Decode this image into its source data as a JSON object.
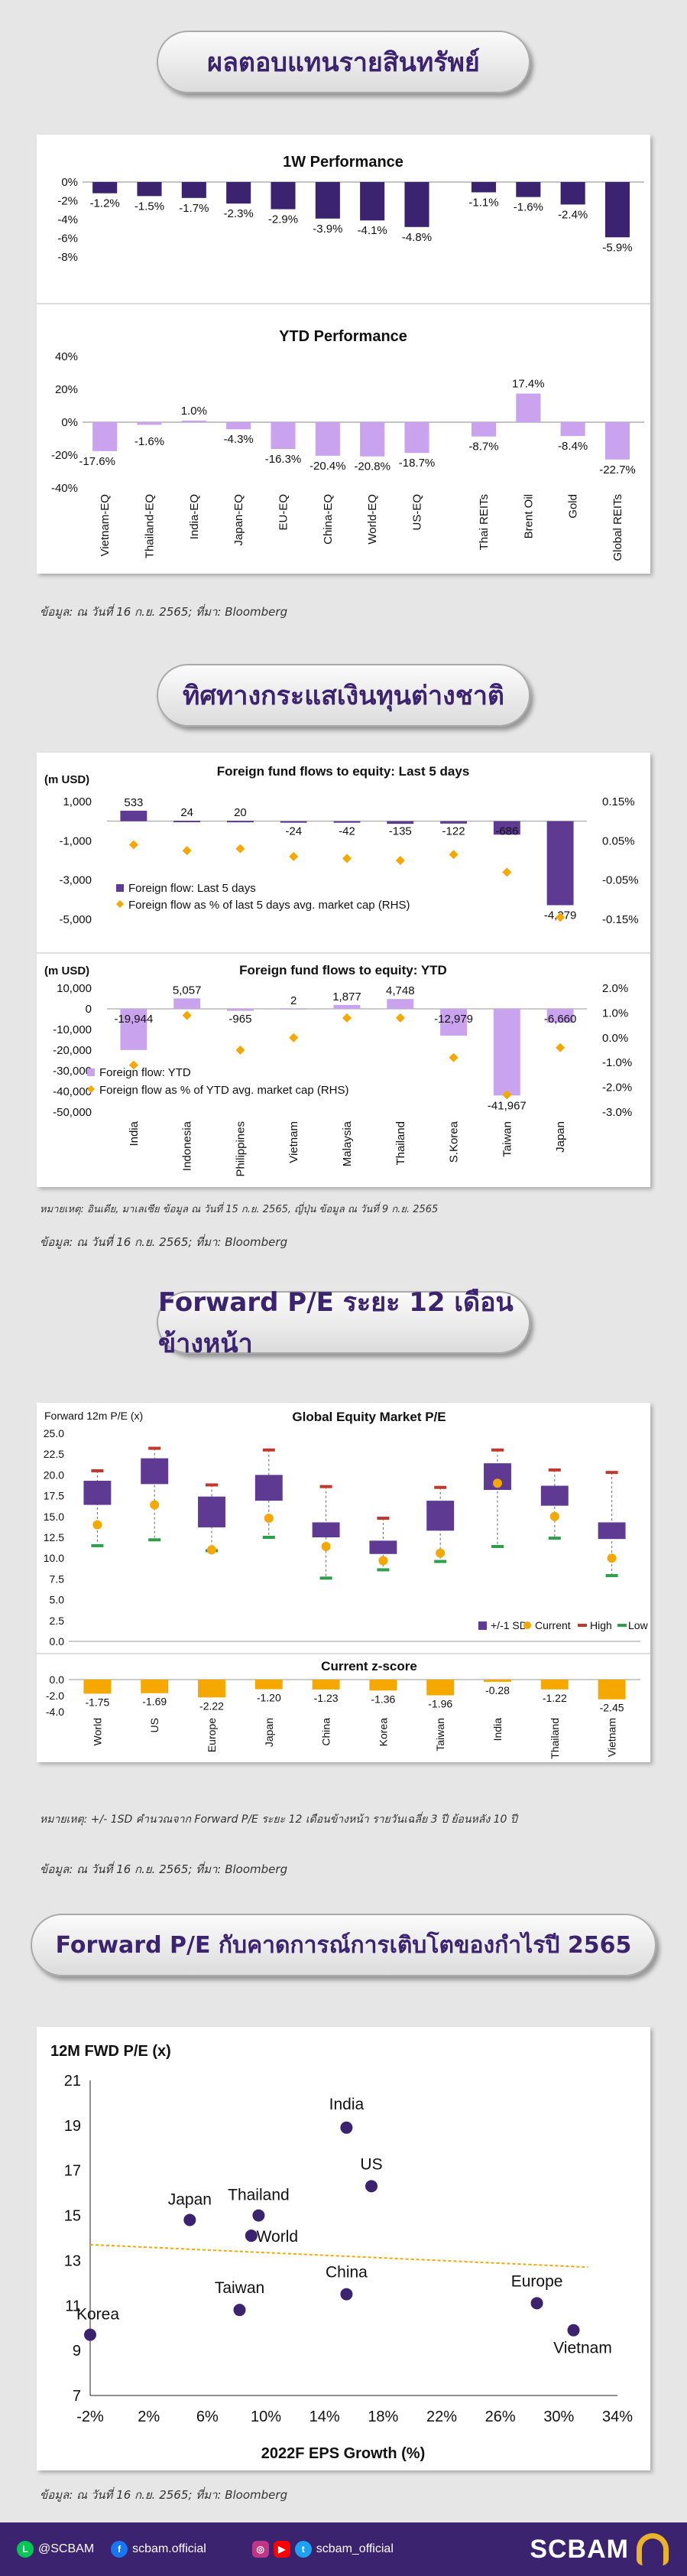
{
  "banners": {
    "b1": "ผลตอบแทนรายสินทรัพย์",
    "b2": "ทิศทางกระแสเงินทุนต่างชาติ",
    "b3": "Forward P/E ระยะ 12 เดือนข้างหน้า",
    "b4": "Forward P/E กับคาดการณ์การเติบโตของกำไรปี 2565"
  },
  "notes": {
    "n1": "ข้อมูล: ณ วันที่ 16 ก.ย. 2565; ที่มา: Bloomberg",
    "n2a": "หมายเหตุ: อินเดีย, มาเลเซีย ข้อมูล ณ วันที่ 15 ก.ย. 2565, ญี่ปุ่น ข้อมูล ณ วันที่ 9 ก.ย. 2565",
    "n2b": "ข้อมูล: ณ วันที่ 16 ก.ย. 2565; ที่มา: Bloomberg",
    "n3a": "หมายเหตุ: +/- 1SD คำนวณจาก Forward P/E ระยะ 12 เดือนข้างหน้า รายวันเฉลี่ย 3 ปี ย้อนหลัง 10 ปี",
    "n3b": "ข้อมูล: ณ วันที่ 16 ก.ย. 2565; ที่มา: Bloomberg",
    "n4": "ข้อมูล: ณ วันที่ 16 ก.ย. 2565; ที่มา: Bloomberg"
  },
  "footer": {
    "line": "@SCBAM",
    "facebook": "scbam.official",
    "social": "scbam_official",
    "brand": "SCBAM"
  },
  "colors": {
    "dark_purple": "#3b2370",
    "bar_purple": "#5e3a92",
    "light_purple": "#c9a3ee",
    "orange": "#f5a800",
    "red": "#c0392b",
    "green": "#2e9e4a"
  },
  "chart_data": [
    {
      "type": "bar",
      "title": "1W Performance",
      "categories": [
        "Vietnam-EQ",
        "Thailand-EQ",
        "India-EQ",
        "Japan-EQ",
        "EU-EQ",
        "China-EQ",
        "World-EQ",
        "US-EQ",
        "Thai REITs",
        "Brent Oil",
        "Gold",
        "Global REITs"
      ],
      "values": [
        -1.2,
        -1.5,
        -1.7,
        -2.3,
        -2.9,
        -3.9,
        -4.1,
        -4.8,
        -1.1,
        -1.6,
        -2.4,
        -5.9
      ],
      "value_labels": [
        "-1.2%",
        "-1.5%",
        "-1.7%",
        "-2.3%",
        "-2.9%",
        "-3.9%",
        "-4.1%",
        "-4.8%",
        "-1.1%",
        "-1.6%",
        "-2.4%",
        "-5.9%"
      ],
      "yticks": [
        "0%",
        "-2%",
        "-4%",
        "-6%",
        "-8%"
      ],
      "ylim": [
        -8,
        0
      ]
    },
    {
      "type": "bar",
      "title": "YTD Performance",
      "categories": [
        "Vietnam-EQ",
        "Thailand-EQ",
        "India-EQ",
        "Japan-EQ",
        "EU-EQ",
        "China-EQ",
        "World-EQ",
        "US-EQ",
        "Thai REITs",
        "Brent Oil",
        "Gold",
        "Global REITs"
      ],
      "values": [
        -17.6,
        -1.6,
        1.0,
        -4.3,
        -16.3,
        -20.4,
        -20.8,
        -18.7,
        -8.7,
        17.4,
        -8.4,
        -22.7
      ],
      "value_labels": [
        "-17.6%",
        "-1.6%",
        "1.0%",
        "-4.3%",
        "-16.3%",
        "-20.4%",
        "-20.8%",
        "-18.7%",
        "-8.7%",
        "17.4%",
        "-8.4%",
        "-22.7%"
      ],
      "yticks": [
        "40%",
        "20%",
        "0%",
        "-20%",
        "-40%"
      ],
      "ylim": [
        -40,
        40
      ]
    },
    {
      "type": "bar",
      "title": "Foreign fund flows to equity: Last 5 days",
      "ylabel": "(m USD)",
      "categories": [
        "India",
        "Indonesia",
        "Philippines",
        "Vietnam",
        "Malaysia",
        "Thailand",
        "S.Korea",
        "Taiwan",
        "Japan"
      ],
      "series": [
        {
          "name": "Foreign flow: Last 5 days",
          "values": [
            533,
            24,
            20,
            -24,
            -42,
            -135,
            -122,
            -686,
            -4279
          ],
          "labels": [
            "533",
            "24",
            "20",
            "-24",
            "-42",
            "-135",
            "-122",
            "-686",
            "-4,279"
          ]
        },
        {
          "name": "Foreign flow as % of last 5 days avg. market cap (RHS)",
          "values": [
            0.04,
            0.025,
            0.03,
            0.01,
            0.005,
            0.0,
            0.015,
            -0.03,
            -0.145
          ]
        }
      ],
      "yticks": [
        "1,000",
        "-1,000",
        "-3,000",
        "-5,000"
      ],
      "ylim": [
        -5000,
        1000
      ],
      "y2ticks": [
        "0.15%",
        "0.05%",
        "-0.05%",
        "-0.15%"
      ],
      "y2lim": [
        -0.15,
        0.15
      ]
    },
    {
      "type": "bar",
      "title": "Foreign fund flows to equity: YTD",
      "ylabel": "(m USD)",
      "categories": [
        "India",
        "Indonesia",
        "Philippines",
        "Vietnam",
        "Malaysia",
        "Thailand",
        "S.Korea",
        "Taiwan",
        "Japan"
      ],
      "series": [
        {
          "name": "Foreign flow: YTD",
          "values": [
            -19944,
            5057,
            -965,
            2,
            1877,
            4748,
            -12979,
            -41967,
            -6660
          ],
          "labels": [
            "-19,944",
            "5,057",
            "-965",
            "2",
            "1,877",
            "4,748",
            "-12,979",
            "-41,967",
            "-6,660"
          ]
        },
        {
          "name": "Foreign flow as % of YTD avg. market cap (RHS)",
          "values": [
            -1.1,
            0.9,
            -0.5,
            0.0,
            0.8,
            0.8,
            -0.8,
            -2.3,
            -0.4
          ]
        }
      ],
      "yticks": [
        "10,000",
        "0",
        "-10,000",
        "-20,000",
        "-30,000",
        "-40,000",
        "-50,000"
      ],
      "ylim": [
        -50000,
        10000
      ],
      "y2ticks": [
        "2.0%",
        "1.0%",
        "0.0%",
        "-1.0%",
        "-2.0%",
        "-3.0%"
      ],
      "y2lim": [
        -3,
        2
      ]
    },
    {
      "type": "box",
      "title": "Global Equity Market P/E",
      "ylabel": "Forward 12m P/E (x)",
      "categories": [
        "World",
        "US",
        "Europe",
        "Japan",
        "China",
        "Korea",
        "Taiwan",
        "India",
        "Thailand",
        "Vietnam"
      ],
      "upper_sd": [
        19.3,
        22.0,
        17.4,
        20.0,
        14.3,
        12.1,
        16.9,
        21.4,
        18.7,
        14.3
      ],
      "lower_sd": [
        16.4,
        18.9,
        13.7,
        16.9,
        12.5,
        10.5,
        13.3,
        18.2,
        16.3,
        12.3
      ],
      "current": [
        14.0,
        16.4,
        11.0,
        14.8,
        11.4,
        9.7,
        10.6,
        19.0,
        15.0,
        10.0
      ],
      "high": [
        20.5,
        23.2,
        18.8,
        23.0,
        18.6,
        14.8,
        18.5,
        23.0,
        20.6,
        20.3
      ],
      "low": [
        11.5,
        12.2,
        10.9,
        12.5,
        7.6,
        8.6,
        9.6,
        11.4,
        12.4,
        7.9
      ],
      "legend": [
        "+/-1 SD",
        "Current",
        "High",
        "Low"
      ],
      "yticks": [
        "25.0",
        "22.5",
        "20.0",
        "17.5",
        "15.0",
        "12.5",
        "10.0",
        "7.5",
        "5.0",
        "2.5",
        "0.0"
      ],
      "ylim": [
        0,
        25
      ]
    },
    {
      "type": "bar",
      "title": "Current z-score",
      "categories": [
        "World",
        "US",
        "Europe",
        "Japan",
        "China",
        "Korea",
        "Taiwan",
        "India",
        "Thailand",
        "Vietnam"
      ],
      "values": [
        -1.75,
        -1.69,
        -2.22,
        -1.2,
        -1.23,
        -1.36,
        -1.96,
        -0.28,
        -1.22,
        -2.45
      ],
      "value_labels": [
        "-1.75",
        "-1.69",
        "-2.22",
        "-1.20",
        "-1.23",
        "-1.36",
        "-1.96",
        "-0.28",
        "-1.22",
        "-2.45"
      ],
      "yticks": [
        "0.0",
        "-2.0",
        "-4.0"
      ],
      "ylim": [
        -4,
        0
      ]
    },
    {
      "type": "scatter",
      "ylabel": "12M FWD P/E (x)",
      "xlabel": "2022F EPS Growth (%)",
      "points": [
        {
          "label": "India",
          "x": 15.5,
          "y": 18.9
        },
        {
          "label": "US",
          "x": 17.2,
          "y": 16.3
        },
        {
          "label": "Japan",
          "x": 4.8,
          "y": 14.8
        },
        {
          "label": "Thailand",
          "x": 9.5,
          "y": 15.0
        },
        {
          "label": "World",
          "x": 9.0,
          "y": 14.1
        },
        {
          "label": "Korea",
          "x": -2.0,
          "y": 9.7
        },
        {
          "label": "Taiwan",
          "x": 8.2,
          "y": 10.8
        },
        {
          "label": "China",
          "x": 15.5,
          "y": 11.5
        },
        {
          "label": "Europe",
          "x": 28.5,
          "y": 11.1
        },
        {
          "label": "Vietnam",
          "x": 31.0,
          "y": 9.9
        }
      ],
      "trendline": [
        {
          "x": -2,
          "y": 13.7
        },
        {
          "x": 32,
          "y": 12.7
        }
      ],
      "xticks": [
        "-2%",
        "2%",
        "6%",
        "10%",
        "14%",
        "18%",
        "22%",
        "26%",
        "30%",
        "34%"
      ],
      "xlim": [
        -2,
        34
      ],
      "yticks": [
        "21",
        "19",
        "17",
        "15",
        "13",
        "11",
        "9",
        "7"
      ],
      "ylim": [
        7,
        21
      ]
    }
  ]
}
